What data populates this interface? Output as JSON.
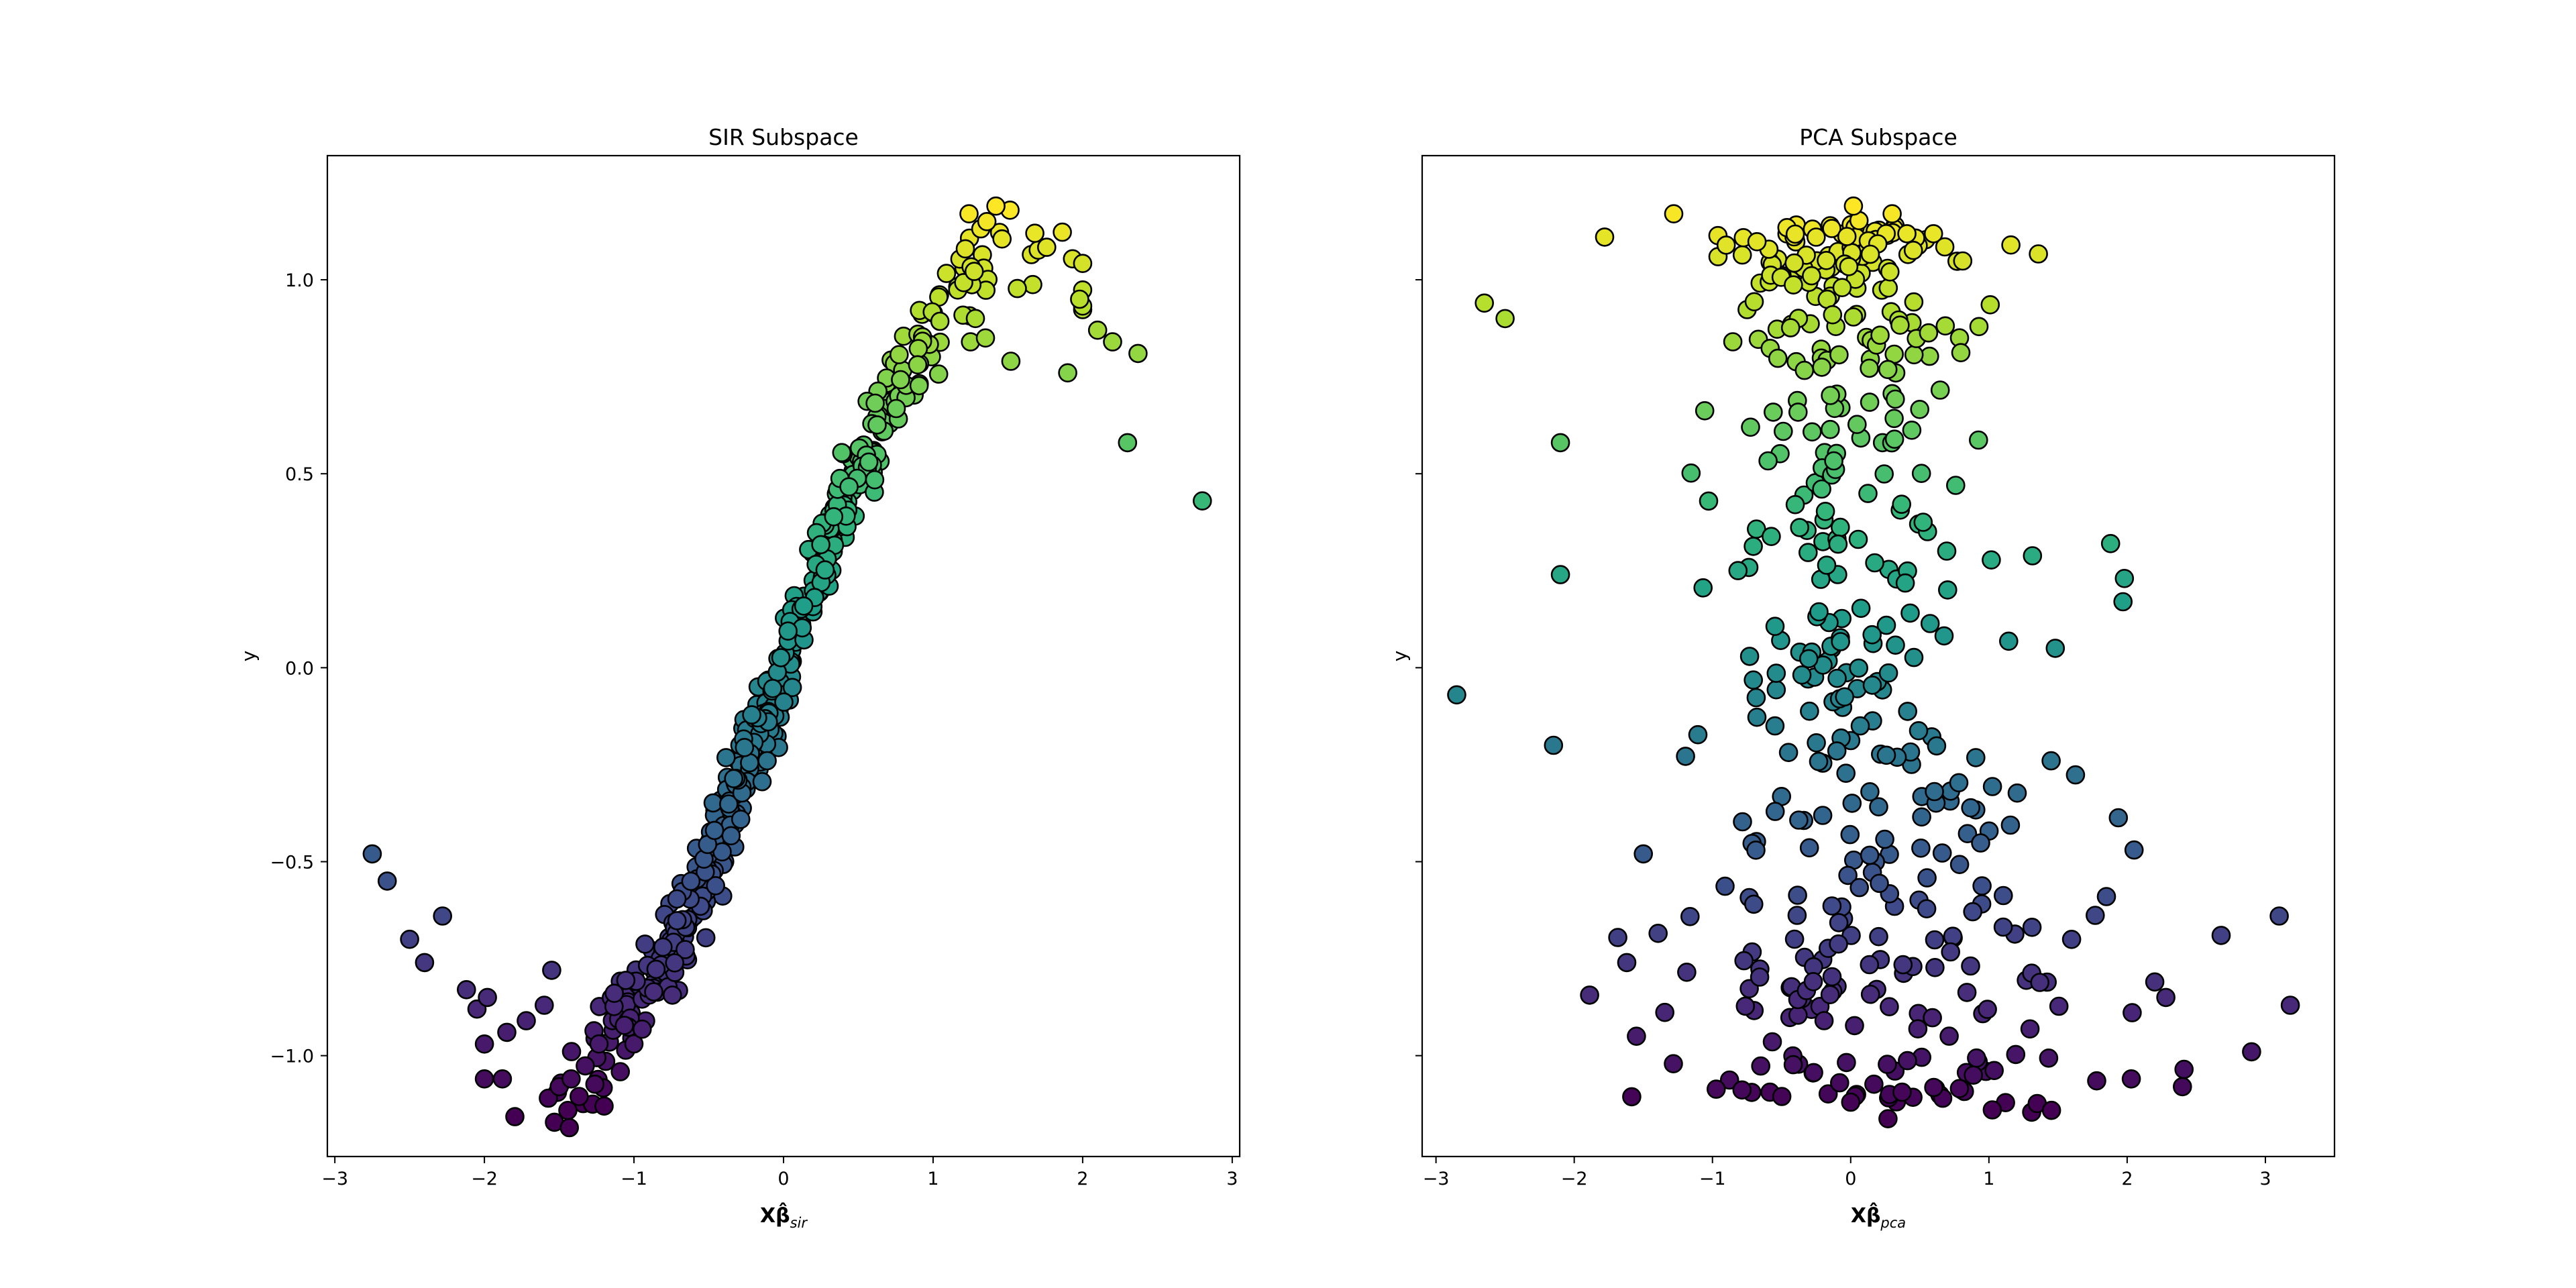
{
  "chart_data": [
    {
      "type": "scatter",
      "title": "SIR Subspace",
      "xlabel": "Xβ̂",
      "xlabel_sub": "sir",
      "ylabel": "y",
      "xlim": [
        -3.05,
        3.05
      ],
      "ylim": [
        -1.26,
        1.32
      ],
      "xticks": [
        -3,
        -2,
        -1,
        0,
        1,
        2,
        3
      ],
      "xtick_labels": [
        "−3",
        "−2",
        "−1",
        "0",
        "1",
        "2",
        "3"
      ],
      "yticks": [
        -1.0,
        -0.5,
        0.0,
        0.5,
        1.0
      ],
      "ytick_labels": [
        "−1.0",
        "−0.5",
        "0.0",
        "0.5",
        "1.0"
      ],
      "show_ytick_labels": true,
      "grid": false,
      "colormap": "viridis",
      "point_count": 500,
      "seed": 7,
      "points": [
        [
          -2.75,
          -0.48
        ],
        [
          -2.65,
          -0.55
        ],
        [
          -2.5,
          -0.7
        ],
        [
          -2.4,
          -0.76
        ],
        [
          -2.28,
          -0.64
        ],
        [
          -2.12,
          -0.83
        ],
        [
          -2.05,
          -0.88
        ],
        [
          -1.98,
          -0.85
        ],
        [
          -2.0,
          -0.97
        ],
        [
          -1.88,
          -1.06
        ],
        [
          -1.85,
          -0.94
        ],
        [
          -1.72,
          -0.91
        ],
        [
          -1.6,
          -0.87
        ],
        [
          -1.55,
          -0.78
        ],
        [
          -1.5,
          -1.08
        ],
        [
          -1.42,
          -1.06
        ],
        [
          -1.2,
          -1.13
        ],
        [
          1.24,
          1.17
        ],
        [
          1.42,
          1.19
        ],
        [
          1.68,
          1.12
        ],
        [
          1.98,
          0.95
        ],
        [
          2.1,
          0.87
        ],
        [
          2.2,
          0.84
        ],
        [
          2.37,
          0.81
        ],
        [
          2.3,
          0.58
        ],
        [
          2.8,
          0.43
        ],
        [
          1.9,
          0.76
        ],
        [
          1.52,
          0.79
        ],
        [
          1.25,
          0.84
        ],
        [
          1.35,
          0.85
        ]
      ]
    },
    {
      "type": "scatter",
      "title": "PCA Subspace",
      "xlabel": "Xβ̂",
      "xlabel_sub": "pca",
      "ylabel": "y",
      "xlim": [
        -3.1,
        3.5
      ],
      "ylim": [
        -1.26,
        1.32
      ],
      "xticks": [
        -3,
        -2,
        -1,
        0,
        1,
        2,
        3
      ],
      "xtick_labels": [
        "−3",
        "−2",
        "−1",
        "0",
        "1",
        "2",
        "3"
      ],
      "yticks": [
        -1.0,
        -0.5,
        0.0,
        0.5,
        1.0
      ],
      "ytick_labels": [
        "−1.0",
        "−0.5",
        "0.0",
        "0.5",
        "1.0"
      ],
      "show_ytick_labels": false,
      "grid": false,
      "colormap": "viridis",
      "point_count": 500,
      "seed": 11,
      "points": [
        [
          -2.85,
          -0.07
        ],
        [
          -2.15,
          -0.2
        ],
        [
          -2.1,
          0.24
        ],
        [
          -2.1,
          0.58
        ],
        [
          -2.65,
          0.94
        ],
        [
          -2.5,
          0.9
        ],
        [
          -1.78,
          1.11
        ],
        [
          -1.28,
          1.17
        ],
        [
          0.02,
          1.19
        ],
        [
          0.3,
          1.17
        ],
        [
          2.9,
          -0.99
        ],
        [
          3.18,
          -0.87
        ],
        [
          3.1,
          -0.64
        ],
        [
          2.68,
          -0.69
        ],
        [
          2.4,
          -1.08
        ],
        [
          2.03,
          -1.06
        ],
        [
          0.0,
          -1.12
        ],
        [
          -0.08,
          -1.07
        ],
        [
          1.88,
          0.32
        ],
        [
          1.98,
          0.23
        ],
        [
          1.97,
          0.17
        ],
        [
          1.48,
          0.05
        ],
        [
          1.45,
          -0.24
        ],
        [
          -1.55,
          -0.95
        ],
        [
          -1.62,
          -0.76
        ],
        [
          -1.5,
          -0.48
        ],
        [
          2.05,
          -0.47
        ],
        [
          2.2,
          -0.81
        ],
        [
          2.28,
          -0.85
        ],
        [
          1.85,
          -0.59
        ]
      ]
    }
  ]
}
